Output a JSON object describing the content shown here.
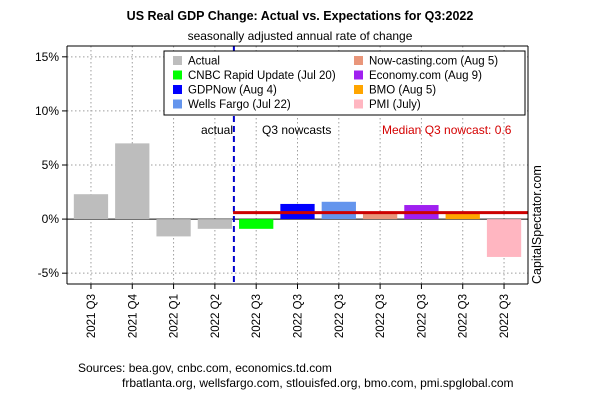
{
  "chart_data": {
    "type": "bar",
    "title": "US Real GDP Change: Actual vs. Expectations for Q3:2022",
    "subtitle": "seasonally adjusted annual rate of change",
    "ylim": [
      -6,
      16
    ],
    "yticks": [
      -5,
      0,
      5,
      10,
      15
    ],
    "ytick_labels": [
      "-5%",
      "0%",
      "5%",
      "10%",
      "15%"
    ],
    "grid": true,
    "legend_position": "top-right",
    "categories": [
      "2021 Q3",
      "2021 Q4",
      "2022 Q1",
      "2022 Q2",
      "2022 Q3",
      "2022 Q3",
      "2022 Q3",
      "2022 Q3",
      "2022 Q3",
      "2022 Q3",
      "2022 Q3"
    ],
    "series": [
      {
        "name": "Actual",
        "color": "#bdbdbd",
        "values": [
          2.3,
          7.0,
          -1.6,
          -0.9,
          null,
          null,
          null,
          null,
          null,
          null,
          null
        ]
      },
      {
        "name": "CNBC Rapid Update (Jul 20)",
        "color": "#00ff00",
        "values": [
          null,
          null,
          null,
          null,
          -0.9,
          null,
          null,
          null,
          null,
          null,
          null
        ]
      },
      {
        "name": "GDPNow (Aug 4)",
        "color": "#0000ff",
        "values": [
          null,
          null,
          null,
          null,
          null,
          1.4,
          null,
          null,
          null,
          null,
          null
        ]
      },
      {
        "name": "Wells Fargo (Jul 22)",
        "color": "#6495ed",
        "values": [
          null,
          null,
          null,
          null,
          null,
          null,
          1.6,
          null,
          null,
          null,
          null
        ]
      },
      {
        "name": "Now-casting.com (Aug 5)",
        "color": "#e9967a",
        "values": [
          null,
          null,
          null,
          null,
          null,
          null,
          null,
          0.6,
          null,
          null,
          null
        ]
      },
      {
        "name": "Economy.com (Aug 9)",
        "color": "#a020f0",
        "values": [
          null,
          null,
          null,
          null,
          null,
          null,
          null,
          null,
          1.3,
          null,
          null
        ]
      },
      {
        "name": "BMO (Aug 5)",
        "color": "#ffa500",
        "values": [
          null,
          null,
          null,
          null,
          null,
          null,
          null,
          null,
          null,
          0.5,
          null
        ]
      },
      {
        "name": "PMI (July)",
        "color": "#ffb6c1",
        "values": [
          null,
          null,
          null,
          null,
          null,
          null,
          null,
          null,
          null,
          null,
          -3.5
        ]
      }
    ],
    "median_nowcast": 0.6,
    "annotations": {
      "actual": "actual",
      "nowcasts": "Q3 nowcasts",
      "median": "Median Q3 nowcast:   0.6"
    },
    "sources": [
      "Sources: bea.gov, cnbc.com, economics.td.com",
      "frbatlanta.org, wellsfargo.com, stlouisfed.org, bmo.com, pmi.spglobal.com"
    ],
    "watermark": "CapitalSpectator.com"
  },
  "colors": {
    "median_line": "#cc0000",
    "divider_line": "#0000cc",
    "grid": "#9e9e9e"
  }
}
